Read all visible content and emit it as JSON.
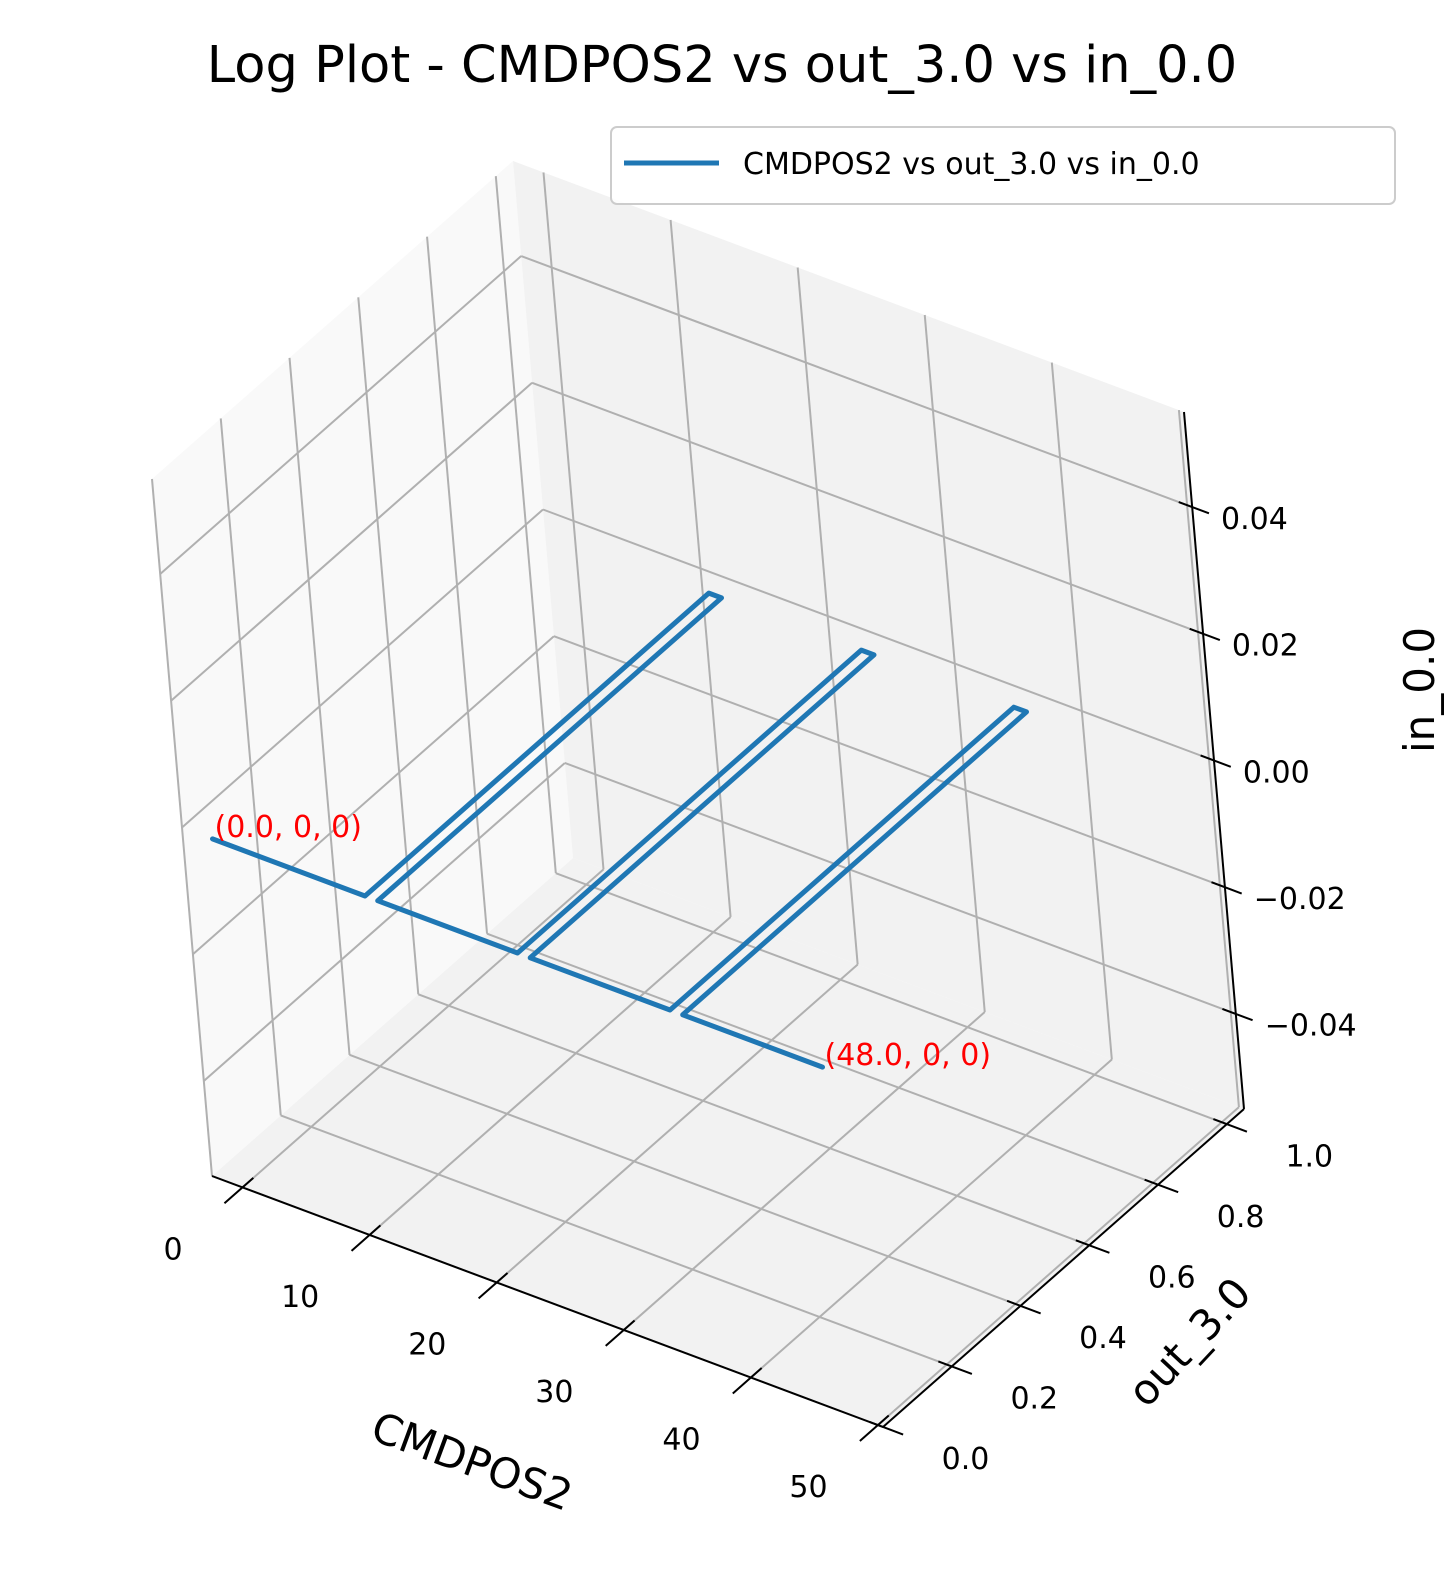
{
  "chart_data": {
    "type": "line",
    "projection": "3d",
    "title": "Log Plot - CMDPOS2 vs out_3.0 vs in_0.0",
    "xlabel": "CMDPOS2",
    "ylabel": "out_3.0",
    "zlabel": "in_0.0",
    "xlim": [
      -2.4,
      50.4
    ],
    "ylim": [
      0,
      1.05
    ],
    "zlim": [
      -0.055,
      0.055
    ],
    "x_ticks": [
      "0",
      "10",
      "20",
      "30",
      "40",
      "50"
    ],
    "y_ticks": [
      "0.0",
      "0.2",
      "0.4",
      "0.6",
      "0.8",
      "1.0"
    ],
    "z_ticks": [
      "−0.04",
      "−0.02",
      "0.00",
      "0.02",
      "0.04"
    ],
    "grid": true,
    "legend_position": "top-right",
    "colors": {
      "series": "#1f77b4",
      "annotation": "#ff0000"
    },
    "series": [
      {
        "name": "CMDPOS2 vs out_3.0 vs in_0.0",
        "x": [
          0,
          12,
          12,
          13,
          13,
          24,
          24,
          25,
          25,
          36,
          36,
          37,
          37,
          48
        ],
        "y": [
          0,
          0,
          1,
          1,
          0,
          0,
          1,
          1,
          0,
          0,
          1,
          1,
          0,
          0
        ],
        "z": [
          0,
          0,
          0,
          0,
          0,
          0,
          0,
          0,
          0,
          0,
          0,
          0,
          0,
          0
        ]
      }
    ],
    "annotations": [
      {
        "text": "(0.0, 0, 0)",
        "x": 0,
        "y": 0,
        "z": 0
      },
      {
        "text": "(48.0, 0, 0)",
        "x": 48,
        "y": 0,
        "z": 0
      }
    ]
  }
}
